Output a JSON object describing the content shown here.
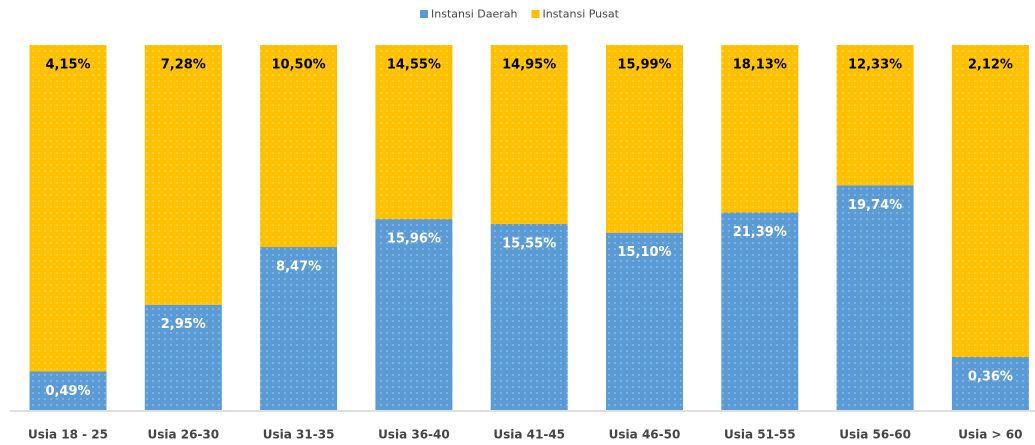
{
  "chart_data": {
    "type": "bar",
    "stacked": "percent",
    "categories": [
      "Usia 18 - 25",
      "Usia 26-30",
      "Usia 31-35",
      "Usia 36-40",
      "Usia 41-45",
      "Usia 46-50",
      "Usia 51-55",
      "Usia 56-60",
      "Usia > 60"
    ],
    "series": [
      {
        "name": "Instansi Daerah",
        "color": "#5b9bd5",
        "values": [
          0.49,
          2.95,
          8.47,
          15.96,
          15.55,
          15.1,
          21.39,
          19.74,
          0.36
        ],
        "value_labels": [
          "0,49%",
          "2,95%",
          "8,47%",
          "15,96%",
          "15,55%",
          "15,10%",
          "21,39%",
          "19,74%",
          "0,36%"
        ]
      },
      {
        "name": "Instansi Pusat",
        "color": "#ffc000",
        "values": [
          4.15,
          7.28,
          10.5,
          14.55,
          14.95,
          15.99,
          18.13,
          12.33,
          2.12
        ],
        "value_labels": [
          "4,15%",
          "7,28%",
          "10,50%",
          "14,55%",
          "14,95%",
          "15,99%",
          "18,13%",
          "12,33%",
          "2,12%"
        ]
      }
    ],
    "legend": "top"
  }
}
